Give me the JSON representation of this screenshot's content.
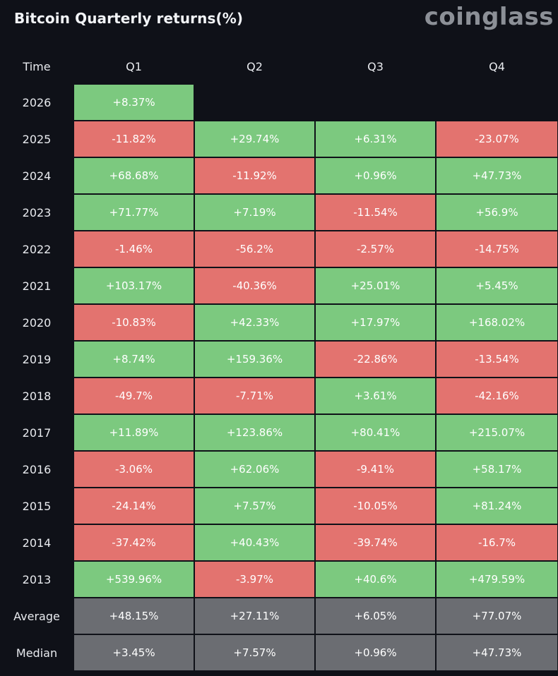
{
  "title": "Bitcoin Quarterly returns(%)",
  "brand": "coinglass",
  "colors": {
    "background": "#0f1118",
    "positive": "#7cc97f",
    "negative": "#e3736f",
    "summary": "#6b6d72"
  },
  "chart_data": {
    "type": "table",
    "title": "Bitcoin Quarterly returns(%)",
    "row_header": "Time",
    "columns": [
      "Q1",
      "Q2",
      "Q3",
      "Q4"
    ],
    "rows": [
      {
        "label": "2026",
        "values": [
          "+8.37%",
          "",
          "",
          ""
        ]
      },
      {
        "label": "2025",
        "values": [
          "-11.82%",
          "+29.74%",
          "+6.31%",
          "-23.07%"
        ]
      },
      {
        "label": "2024",
        "values": [
          "+68.68%",
          "-11.92%",
          "+0.96%",
          "+47.73%"
        ]
      },
      {
        "label": "2023",
        "values": [
          "+71.77%",
          "+7.19%",
          "-11.54%",
          "+56.9%"
        ]
      },
      {
        "label": "2022",
        "values": [
          "-1.46%",
          "-56.2%",
          "-2.57%",
          "-14.75%"
        ]
      },
      {
        "label": "2021",
        "values": [
          "+103.17%",
          "-40.36%",
          "+25.01%",
          "+5.45%"
        ]
      },
      {
        "label": "2020",
        "values": [
          "-10.83%",
          "+42.33%",
          "+17.97%",
          "+168.02%"
        ]
      },
      {
        "label": "2019",
        "values": [
          "+8.74%",
          "+159.36%",
          "-22.86%",
          "-13.54%"
        ]
      },
      {
        "label": "2018",
        "values": [
          "-49.7%",
          "-7.71%",
          "+3.61%",
          "-42.16%"
        ]
      },
      {
        "label": "2017",
        "values": [
          "+11.89%",
          "+123.86%",
          "+80.41%",
          "+215.07%"
        ]
      },
      {
        "label": "2016",
        "values": [
          "-3.06%",
          "+62.06%",
          "-9.41%",
          "+58.17%"
        ]
      },
      {
        "label": "2015",
        "values": [
          "-24.14%",
          "+7.57%",
          "-10.05%",
          "+81.24%"
        ]
      },
      {
        "label": "2014",
        "values": [
          "-37.42%",
          "+40.43%",
          "-39.74%",
          "-16.7%"
        ]
      },
      {
        "label": "2013",
        "values": [
          "+539.96%",
          "-3.97%",
          "+40.6%",
          "+479.59%"
        ]
      }
    ],
    "summary_rows": [
      {
        "label": "Average",
        "values": [
          "+48.15%",
          "+27.11%",
          "+6.05%",
          "+77.07%"
        ]
      },
      {
        "label": "Median",
        "values": [
          "+3.45%",
          "+7.57%",
          "+0.96%",
          "+47.73%"
        ]
      }
    ]
  }
}
